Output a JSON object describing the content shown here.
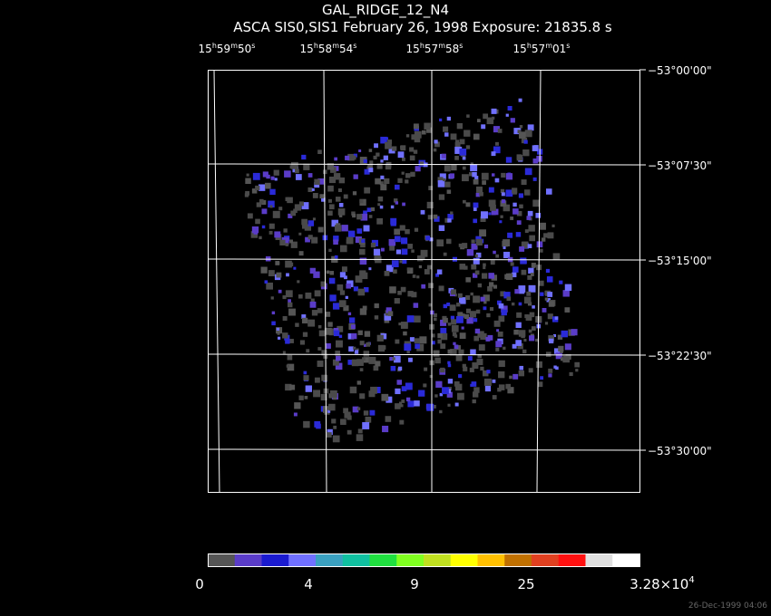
{
  "title": "GAL_RIDGE_12_N4",
  "subtitle": "ASCA SIS0,SIS1 February 26, 1998 Exposure: 21835.8 s",
  "ra_labels": [
    [
      "15",
      "h",
      "59",
      "m",
      "50",
      "s"
    ],
    [
      "15",
      "h",
      "58",
      "m",
      "54",
      "s"
    ],
    [
      "15",
      "h",
      "57",
      "m",
      "58",
      "s"
    ],
    [
      "15",
      "h",
      "57",
      "m",
      "01",
      "s"
    ]
  ],
  "dec_labels": [
    "−53°00'00\"",
    "−53°07'30\"",
    "−53°15'00\"",
    "−53°22'30\"",
    "−53°30'00\""
  ],
  "colorbar": {
    "colors": [
      "#555555",
      "#5a3cc8",
      "#1a1ad0",
      "#7070ff",
      "#3aa0c0",
      "#10c0a0",
      "#20e040",
      "#80ff20",
      "#c0e020",
      "#ffff00",
      "#ffc000",
      "#c07000",
      "#e04020",
      "#ff1010",
      "#e0e0e0",
      "#ffffff"
    ],
    "labels": [
      [
        "0"
      ],
      [
        "4"
      ],
      [
        "9"
      ],
      [
        "25"
      ],
      [
        "3.28×10",
        "4"
      ]
    ]
  },
  "timestamp": "26-Dec-1999 04:06"
}
